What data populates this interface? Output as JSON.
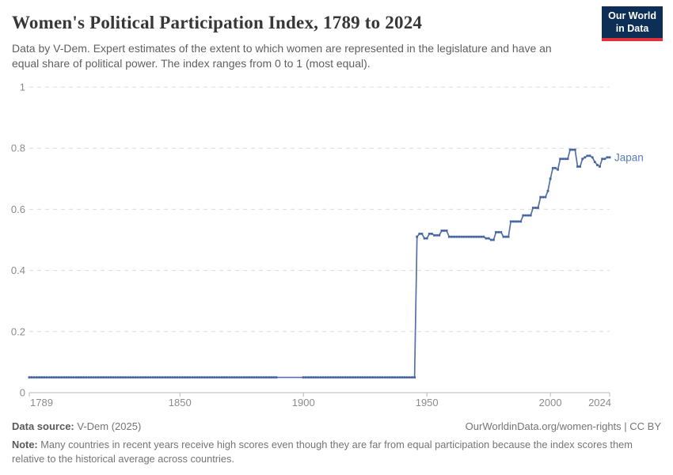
{
  "header": {
    "title": "Women's Political Participation Index, 1789 to 2024",
    "subtitle": "Data by V-Dem. Expert estimates of the extent to which women are represented in the legislature and have an equal share of political power. The index ranges from 0 to 1 (most equal).",
    "logo": {
      "line1": "Our World",
      "line2": "in Data",
      "bg_color": "#0e2f55",
      "accent_color": "#e0313c"
    }
  },
  "footer": {
    "source_label": "Data source:",
    "source_value": " V-Dem (2025)",
    "citation": "OurWorldinData.org/women-rights | CC BY",
    "note_label": "Note:",
    "note_text": " Many countries in recent years receive high scores even though they are far from equal participation because the index scores them relative to the historical average across countries."
  },
  "chart_data": {
    "type": "line",
    "title": "Women's Political Participation Index, 1789 to 2024",
    "series_name": "Japan",
    "xlim": [
      1789,
      2024
    ],
    "ylim": [
      0,
      1
    ],
    "x_ticks": [
      1789,
      1850,
      1900,
      1950,
      2000,
      2024
    ],
    "y_ticks": [
      0,
      0.2,
      0.4,
      0.6,
      0.8,
      1
    ],
    "grid": "dashed-horizontal",
    "legend_position": "end-of-line-label",
    "line_color": "#5472a8",
    "marker_color": "#4766a0",
    "label_color": "#5b7cb0",
    "axis_text_color": "#8c8c8c",
    "no_marker_years": [
      1890,
      1899
    ],
    "runs_year_start_end_value": [
      [
        1789,
        1889,
        0.05
      ],
      [
        1890,
        1899,
        0.05
      ],
      [
        1900,
        1945,
        0.05
      ],
      [
        1946,
        1946,
        0.51
      ],
      [
        1947,
        1948,
        0.52
      ],
      [
        1949,
        1950,
        0.505
      ],
      [
        1951,
        1952,
        0.52
      ],
      [
        1953,
        1955,
        0.515
      ],
      [
        1956,
        1958,
        0.53
      ],
      [
        1959,
        1973,
        0.51
      ],
      [
        1974,
        1975,
        0.505
      ],
      [
        1976,
        1977,
        0.5
      ],
      [
        1978,
        1980,
        0.525
      ],
      [
        1981,
        1983,
        0.51
      ],
      [
        1984,
        1988,
        0.56
      ],
      [
        1989,
        1992,
        0.58
      ],
      [
        1993,
        1995,
        0.605
      ],
      [
        1996,
        1998,
        0.64
      ],
      [
        1999,
        1999,
        0.66
      ],
      [
        2000,
        2000,
        0.7
      ],
      [
        2001,
        2002,
        0.735
      ],
      [
        2003,
        2003,
        0.73
      ],
      [
        2004,
        2007,
        0.765
      ],
      [
        2008,
        2010,
        0.795
      ],
      [
        2011,
        2012,
        0.74
      ],
      [
        2013,
        2013,
        0.765
      ],
      [
        2014,
        2014,
        0.77
      ],
      [
        2015,
        2016,
        0.775
      ],
      [
        2017,
        2017,
        0.77
      ],
      [
        2018,
        2018,
        0.755
      ],
      [
        2019,
        2019,
        0.745
      ],
      [
        2020,
        2020,
        0.74
      ],
      [
        2021,
        2022,
        0.765
      ],
      [
        2023,
        2024,
        0.77
      ]
    ]
  }
}
